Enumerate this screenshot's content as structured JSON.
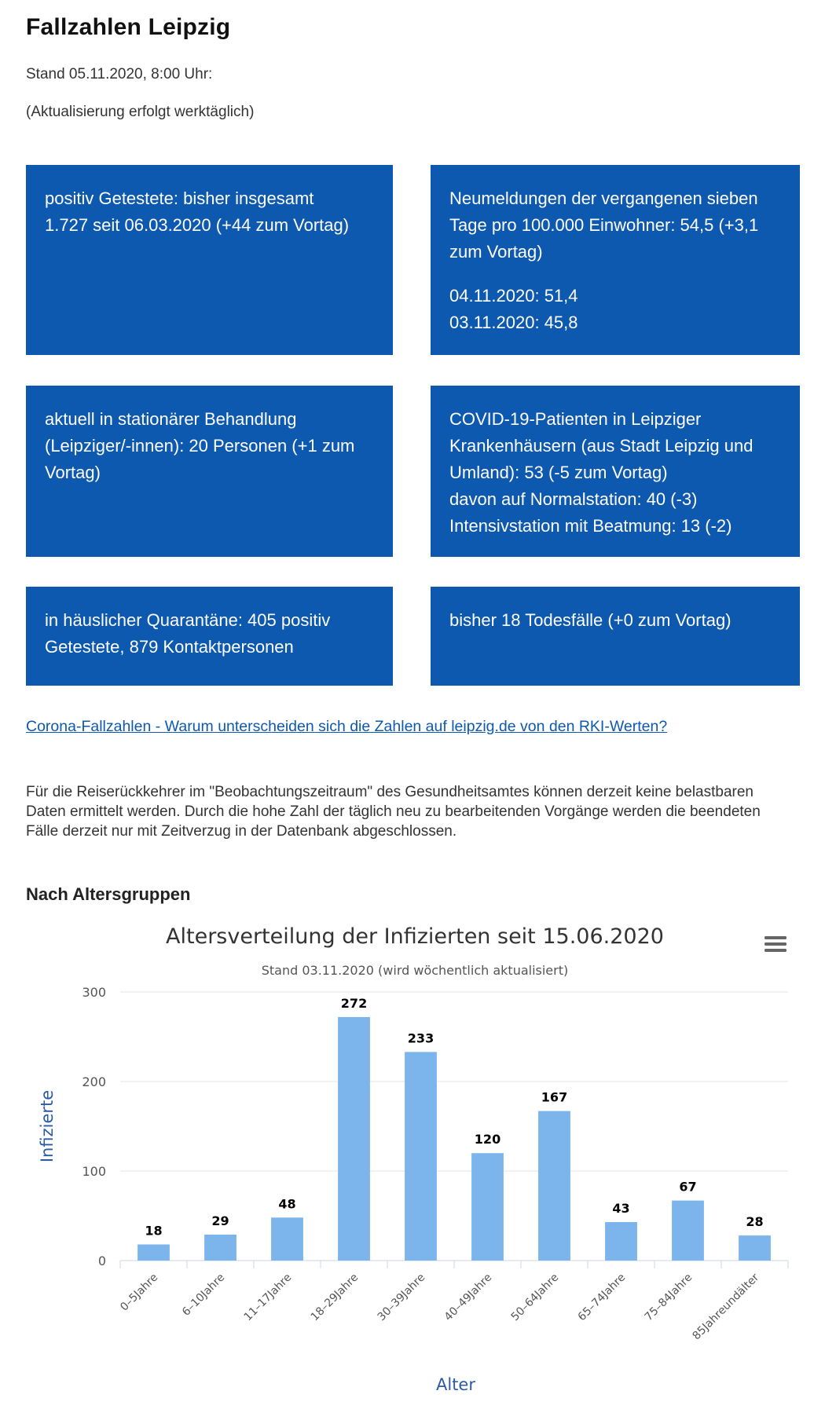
{
  "page": {
    "title": "Fallzahlen Leipzig",
    "stand": "Stand 05.11.2020, 8:00 Uhr:",
    "update_note": "(Aktualisierung erfolgt werktäglich)"
  },
  "boxes": {
    "positive": [
      "positiv Getestete: bisher insgesamt",
      "1.727 seit 06.03.2020 (+44 zum Vortag)"
    ],
    "incidence": [
      "Neumeldungen der vergangenen sieben",
      "Tage pro 100.000 Einwohner: 54,5 (+3,1",
      "zum Vortag)"
    ],
    "incidence_history": [
      "04.11.2020: 51,4",
      "03.11.2020: 45,8"
    ],
    "hospital": [
      "aktuell in stationärer Behandlung",
      "(Leipziger/-innen): 20 Personen (+1 zum",
      "Vortag)"
    ],
    "covid_patients": [
      "COVID-19-Patienten in Leipziger",
      "Krankenhäusern (aus Stadt Leipzig und",
      "Umland): 53 (-5 zum Vortag)",
      "davon auf Normalstation: 40 (-3)",
      "Intensivstation mit Beatmung: 13 (-2)"
    ],
    "quarantine": [
      "in häuslicher Quarantäne: 405 positiv",
      "Getestete, 879 Kontaktpersonen"
    ],
    "deaths": [
      "bisher 18 Todesfälle (+0 zum Vortag)"
    ]
  },
  "link": {
    "rki_text": "Corona-Fallzahlen - Warum unterscheiden sich die Zahlen auf leipzig.de von den RKI-Werten?"
  },
  "notice": "Für die Reiserückkehrer im \"Beobachtungszeitraum\" des Gesundheitsamtes können derzeit keine belastbaren Daten ermittelt werden. Durch die hohe Zahl der täglich neu zu bearbeitenden Vorgänge werden die beendeten Fälle derzeit nur mit Zeitverzug in der Datenbank abgeschlossen.",
  "section": {
    "age_groups": "Nach Altersgruppen"
  },
  "colors": {
    "box": "#0e59b0",
    "bar": "#7cb5ec",
    "axis_title": "#2b5aa8",
    "link": "#0e59b0"
  },
  "chart_data": {
    "type": "bar",
    "title": "Altersverteilung der Infizierten seit 15.06.2020",
    "subtitle": "Stand 03.11.2020 (wird wöchentlich aktualisiert)",
    "xlabel": "Alter",
    "ylabel": "Infizierte",
    "categories": [
      "0–5Jahre",
      "6–10Jahre",
      "11–17Jahre",
      "18–29Jahre",
      "30–39Jahre",
      "40–49Jahre",
      "50–64Jahre",
      "65–74Jahre",
      "75–84Jahre",
      "85Jahreundälter"
    ],
    "values": [
      18,
      29,
      48,
      272,
      233,
      120,
      167,
      43,
      67,
      28
    ],
    "ylim": [
      0,
      300
    ],
    "yticks": [
      0,
      100,
      200,
      300
    ],
    "grid": true,
    "legend": false,
    "data_labels": true,
    "menu_icon": "hamburger-menu-icon"
  }
}
